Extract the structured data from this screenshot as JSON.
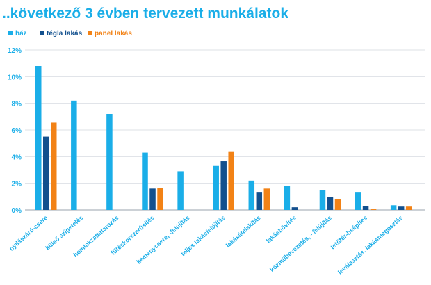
{
  "chart_data": {
    "type": "bar",
    "title": "..következő 3 évben tervezett munkálatok",
    "xlabel": "",
    "ylabel": "",
    "ylim": [
      0,
      12
    ],
    "yticks": [
      "0%",
      "2%",
      "4%",
      "6%",
      "8%",
      "10%",
      "12%"
    ],
    "grid": true,
    "legend_position": "top-left",
    "categories": [
      "nyílászáró-csere",
      "külső szigetelés",
      "homlokzattatarozás",
      "fűtéskorszerűsítés",
      "kéménycsere, -felújítás",
      "teljes lakásfelújítás",
      "lakásátalakítás",
      "lakásbővítés",
      "közműbevezetés, - felújítás",
      "tetőtér-beépítés",
      "leválasztás, lakásmegosztás"
    ],
    "series": [
      {
        "name": "ház",
        "color": "#1aaee8",
        "values": [
          10.8,
          8.2,
          7.2,
          4.3,
          2.9,
          3.3,
          2.2,
          1.8,
          1.5,
          1.35,
          0.35
        ]
      },
      {
        "name": "tégla lakás",
        "color": "#12508e",
        "values": [
          5.5,
          0,
          0,
          1.6,
          0,
          3.65,
          1.35,
          0.2,
          0.95,
          0.3,
          0.25
        ]
      },
      {
        "name": "panel lakás",
        "color": "#f28216",
        "values": [
          6.55,
          0,
          0,
          1.65,
          0,
          4.4,
          1.6,
          0,
          0.8,
          0.05,
          0.25
        ]
      }
    ]
  }
}
